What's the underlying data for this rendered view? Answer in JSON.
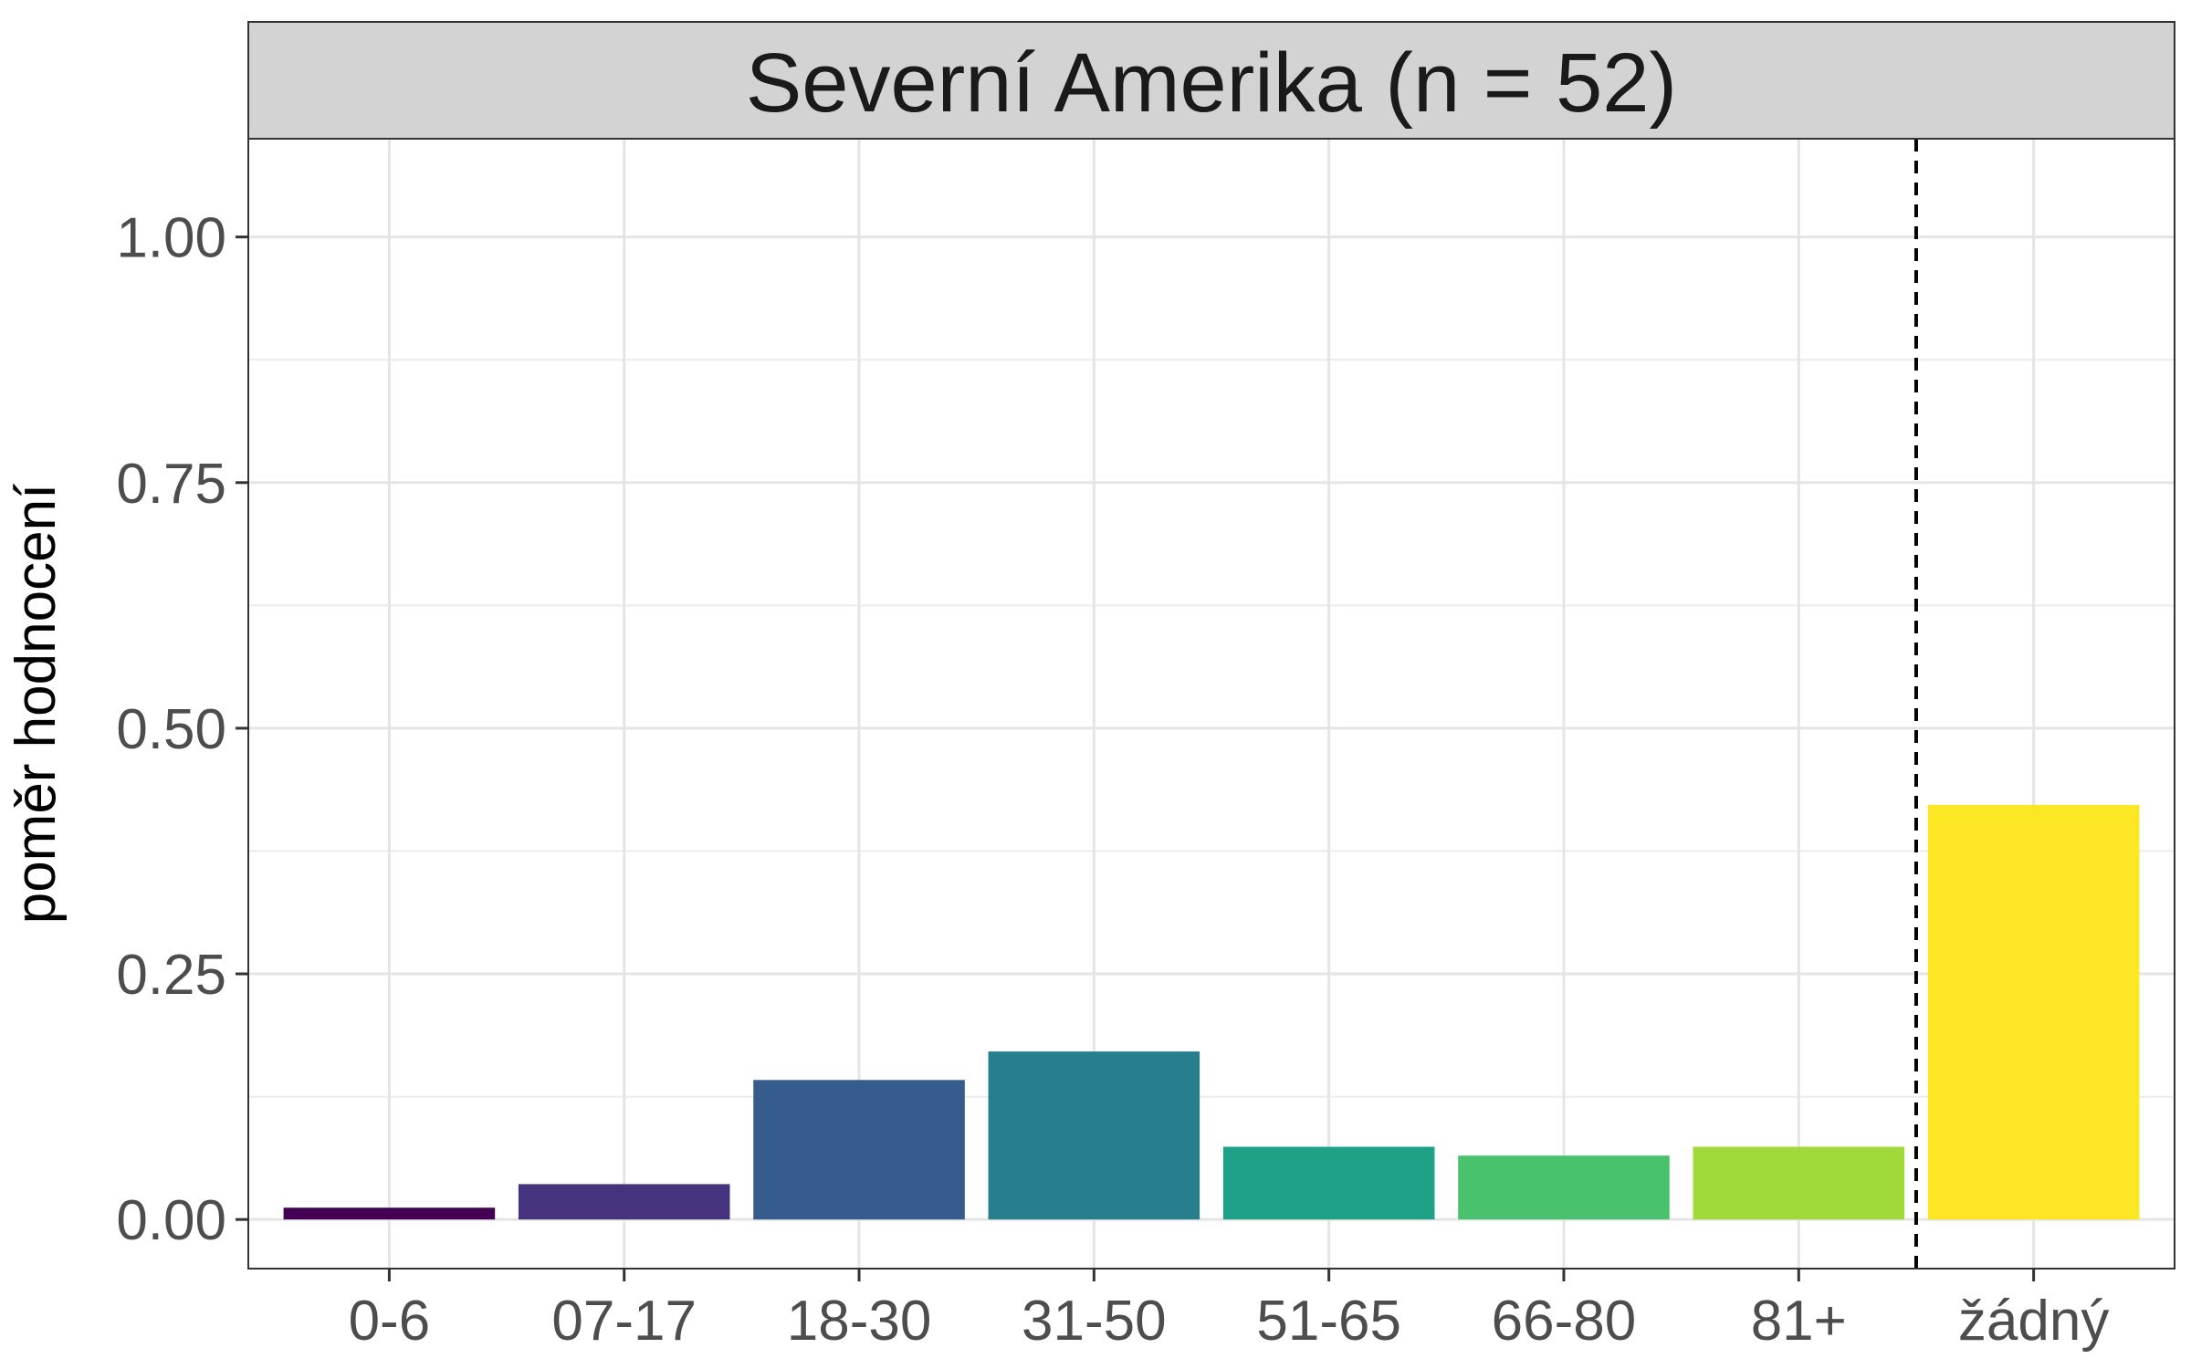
{
  "chart_data": {
    "type": "bar",
    "title": "Severní Amerika (n = 52)",
    "xlabel": "",
    "ylabel": "poměr hodnocení",
    "categories": [
      "0-6",
      "07-17",
      "18-30",
      "31-50",
      "51-65",
      "66-80",
      "81+",
      "žádný"
    ],
    "values": [
      0.012,
      0.036,
      0.142,
      0.171,
      0.074,
      0.065,
      0.074,
      0.422
    ],
    "colors": [
      "#440154",
      "#46337E",
      "#365C8D",
      "#277F8E",
      "#1FA187",
      "#4AC16D",
      "#9FDA3A",
      "#FDE725"
    ],
    "ylim": [
      -0.05,
      1.1
    ],
    "yticks": [
      "0.00",
      "0.25",
      "0.50",
      "0.75",
      "1.00"
    ],
    "reference_line": {
      "style": "dashed",
      "between": [
        "81+",
        "žádný"
      ]
    },
    "grid": true,
    "legend": "none"
  }
}
